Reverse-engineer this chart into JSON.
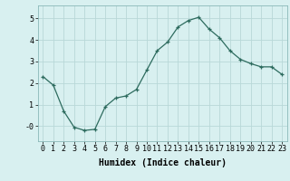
{
  "x": [
    0,
    1,
    2,
    3,
    4,
    5,
    6,
    7,
    8,
    9,
    10,
    11,
    12,
    13,
    14,
    15,
    16,
    17,
    18,
    19,
    20,
    21,
    22,
    23
  ],
  "y": [
    2.3,
    1.9,
    0.7,
    -0.05,
    -0.2,
    -0.15,
    0.9,
    1.3,
    1.4,
    1.7,
    2.6,
    3.5,
    3.9,
    4.6,
    4.9,
    5.05,
    4.5,
    4.1,
    3.5,
    3.1,
    2.9,
    2.75,
    2.75,
    2.4
  ],
  "line_color": "#2d6b5e",
  "marker": "+",
  "marker_size": 3,
  "background_color": "#d8f0f0",
  "grid_color": "#b8d8d8",
  "xlabel": "Humidex (Indice chaleur)",
  "xlim": [
    -0.5,
    23.5
  ],
  "ylim": [
    -0.7,
    5.6
  ],
  "yticks": [
    0,
    1,
    2,
    3,
    4,
    5
  ],
  "ytick_labels": [
    "-0",
    "1",
    "2",
    "3",
    "4",
    "5"
  ],
  "xtick_labels": [
    "0",
    "1",
    "2",
    "3",
    "4",
    "5",
    "6",
    "7",
    "8",
    "9",
    "10",
    "11",
    "12",
    "13",
    "14",
    "15",
    "16",
    "17",
    "18",
    "19",
    "20",
    "21",
    "22",
    "23"
  ],
  "label_fontsize": 7,
  "tick_fontsize": 6
}
